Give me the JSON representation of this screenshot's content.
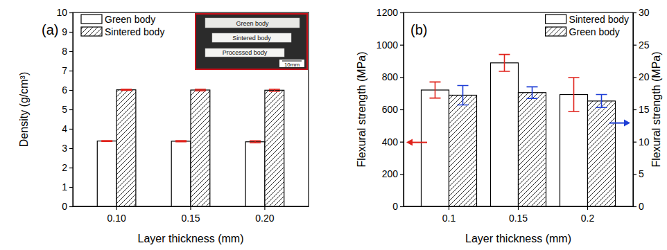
{
  "chart_data": [
    {
      "type": "bar",
      "title": "(a)",
      "xlabel": "Layer thickness (mm)",
      "ylabel": "Density (g/cm³)",
      "categories": [
        "0.10",
        "0.15",
        "0.20"
      ],
      "series": [
        {
          "name": "Green body",
          "color": "#ffffff",
          "values": [
            3.37,
            3.36,
            3.33
          ],
          "errors": [
            0.02,
            0.03,
            0.05
          ]
        },
        {
          "name": "Sintered body",
          "color": "#ffffff",
          "values": [
            6.01,
            6.0,
            5.99
          ],
          "errors": [
            0.03,
            0.04,
            0.05
          ]
        }
      ],
      "ylim": [
        0,
        10
      ],
      "yticks": [
        0,
        1,
        2,
        3,
        4,
        5,
        6,
        7,
        8,
        9,
        10
      ],
      "legend": "upper left",
      "annotations": [
        "Green body",
        "Sintered body",
        "Processed body",
        "10mm"
      ]
    },
    {
      "type": "bar",
      "title": "(b)",
      "xlabel": "Layer thickness (mm)",
      "ylabel": "Flexural strength (MPa)",
      "y2label": "Flexural strength (MPa)",
      "categories": [
        "0.1",
        "0.15",
        "0.2"
      ],
      "series": [
        {
          "name": "Sintered body",
          "color": "#ffffff",
          "values": [
            720,
            888,
            692
          ],
          "errors": [
            50,
            52,
            105
          ]
        },
        {
          "name": "Green body",
          "color": "#ffffff",
          "axis": "y2",
          "values": [
            17.2,
            17.6,
            16.3
          ],
          "errors": [
            1.5,
            0.9,
            1.0
          ]
        }
      ],
      "ylim": [
        0,
        1200
      ],
      "yticks": [
        0,
        200,
        400,
        600,
        800,
        1000,
        1200
      ],
      "y2lim": [
        0,
        30
      ],
      "y2ticks": [
        0,
        5,
        10,
        15,
        20,
        25,
        30
      ],
      "legend": "upper right"
    }
  ]
}
